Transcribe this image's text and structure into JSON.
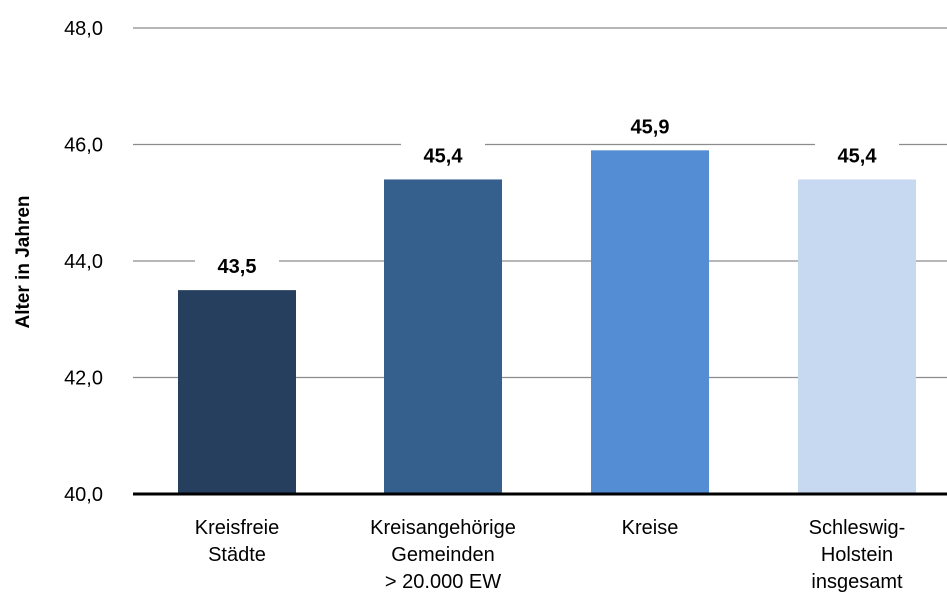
{
  "chart_data": {
    "type": "bar",
    "title": "",
    "xlabel": "",
    "ylabel": "Alter in Jahren",
    "ylim": [
      40.0,
      48.0
    ],
    "yticks": [
      40.0,
      42.0,
      44.0,
      46.0,
      48.0
    ],
    "ytick_labels": [
      "40,0",
      "42,0",
      "44,0",
      "46,0",
      "48,0"
    ],
    "categories": [
      [
        "Kreisfreie",
        "Städte"
      ],
      [
        "Kreisangehörige",
        "Gemeinden",
        "> 20.000 EW"
      ],
      [
        "Kreise"
      ],
      [
        "Schleswig-",
        "Holstein",
        "insgesamt"
      ]
    ],
    "values": [
      43.5,
      45.4,
      45.9,
      45.4
    ],
    "value_labels": [
      "43,5",
      "45,4",
      "45,9",
      "45,4"
    ],
    "bar_colors": [
      "#263f5f",
      "#355f8d",
      "#548dd4",
      "#c6d9f1"
    ],
    "grid": true,
    "legend": "none"
  }
}
